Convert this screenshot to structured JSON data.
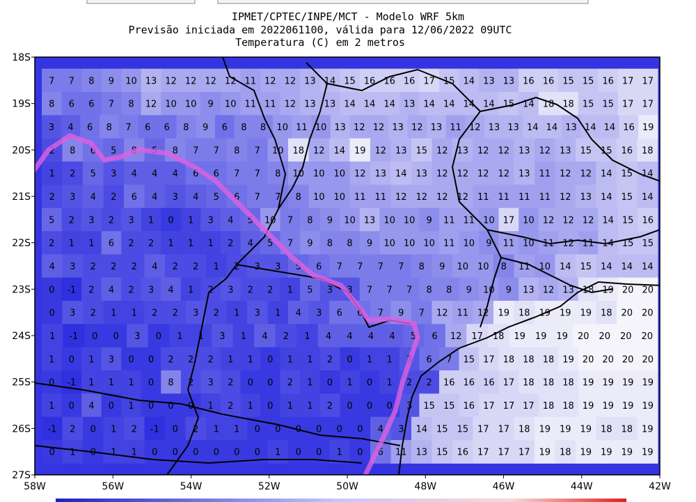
{
  "header": {
    "lines": [
      "IPMET/CPTEC/INPE/MCT - Modelo WRF 5km",
      "Previsão iniciada em 2022061100, válida para 12/06/2022 09UTC",
      "Temperatura (C) em 2 metros"
    ]
  },
  "axes": {
    "lat_labels": [
      "18S",
      "19S",
      "20S",
      "21S",
      "22S",
      "23S",
      "24S",
      "25S",
      "26S",
      "27S"
    ],
    "lon_labels": [
      "58W",
      "56W",
      "54W",
      "52W",
      "50W",
      "48W",
      "46W",
      "44W",
      "42W"
    ]
  },
  "grid": {
    "rows": [
      [
        7,
        7,
        8,
        9,
        10,
        13,
        12,
        12,
        12,
        12,
        11,
        12,
        12,
        13,
        14,
        15,
        16,
        16,
        16,
        17,
        15,
        14,
        13,
        13,
        16,
        16,
        15,
        15,
        16,
        17,
        17
      ],
      [
        8,
        6,
        6,
        7,
        8,
        12,
        10,
        10,
        9,
        10,
        11,
        11,
        12,
        13,
        13,
        14,
        14,
        14,
        13,
        14,
        14,
        14,
        14,
        15,
        14,
        18,
        18,
        15,
        15,
        17,
        17
      ],
      [
        3,
        4,
        6,
        8,
        7,
        6,
        6,
        8,
        9,
        6,
        8,
        8,
        10,
        11,
        10,
        13,
        12,
        12,
        13,
        12,
        13,
        11,
        12,
        13,
        13,
        14,
        14,
        13,
        14,
        14,
        16,
        19
      ],
      [
        2,
        8,
        6,
        5,
        8,
        5,
        8,
        7,
        7,
        8,
        7,
        10,
        18,
        12,
        14,
        19,
        12,
        13,
        15,
        12,
        13,
        12,
        12,
        13,
        12,
        13,
        15,
        15,
        16,
        18
      ],
      [
        1,
        2,
        5,
        3,
        4,
        4,
        4,
        6,
        6,
        7,
        7,
        8,
        10,
        10,
        10,
        12,
        13,
        14,
        13,
        12,
        12,
        12,
        12,
        13,
        11,
        12,
        12,
        14,
        15,
        14
      ],
      [
        2,
        3,
        4,
        2,
        6,
        4,
        3,
        4,
        5,
        6,
        7,
        7,
        8,
        10,
        10,
        11,
        11,
        12,
        12,
        12,
        12,
        11,
        11,
        11,
        11,
        12,
        13,
        14,
        15,
        14
      ],
      [
        5,
        2,
        3,
        2,
        3,
        1,
        0,
        1,
        3,
        4,
        5,
        10,
        7,
        8,
        9,
        10,
        13,
        10,
        10,
        9,
        11,
        11,
        10,
        17,
        10,
        12,
        12,
        12,
        14,
        15,
        16
      ],
      [
        2,
        1,
        1,
        6,
        2,
        2,
        1,
        1,
        1,
        2,
        4,
        5,
        7,
        9,
        8,
        8,
        9,
        10,
        10,
        10,
        11,
        10,
        9,
        11,
        10,
        11,
        12,
        11,
        14,
        15,
        15
      ],
      [
        4,
        3,
        2,
        2,
        2,
        4,
        2,
        2,
        1,
        2,
        3,
        3,
        5,
        6,
        7,
        7,
        7,
        7,
        8,
        9,
        10,
        10,
        8,
        11,
        10,
        14,
        15,
        14,
        14,
        14
      ],
      [
        0,
        -1,
        2,
        4,
        2,
        3,
        4,
        1,
        2,
        3,
        2,
        2,
        1,
        5,
        3,
        3,
        7,
        7,
        7,
        8,
        8,
        9,
        10,
        9,
        13,
        12,
        13,
        18,
        19,
        20,
        20
      ],
      [
        0,
        3,
        2,
        1,
        1,
        2,
        2,
        3,
        2,
        1,
        3,
        1,
        4,
        3,
        6,
        6,
        7,
        9,
        7,
        12,
        11,
        12,
        19,
        18,
        19,
        19,
        19,
        18,
        20,
        20
      ],
      [
        1,
        -1,
        0,
        0,
        3,
        0,
        1,
        1,
        3,
        1,
        4,
        2,
        1,
        4,
        4,
        4,
        4,
        5,
        6,
        12,
        17,
        18,
        19,
        19,
        19,
        20,
        20,
        20,
        20
      ],
      [
        1,
        0,
        1,
        3,
        0,
        0,
        2,
        2,
        2,
        1,
        1,
        0,
        1,
        1,
        2,
        0,
        1,
        1,
        3,
        6,
        7,
        15,
        17,
        18,
        18,
        18,
        19,
        20,
        20,
        20,
        20
      ],
      [
        0,
        -1,
        1,
        1,
        1,
        0,
        8,
        2,
        3,
        2,
        0,
        0,
        2,
        1,
        0,
        1,
        0,
        1,
        2,
        2,
        16,
        16,
        16,
        17,
        18,
        18,
        18,
        19,
        19,
        19,
        19
      ],
      [
        1,
        0,
        4,
        0,
        1,
        0,
        0,
        0,
        1,
        2,
        1,
        0,
        1,
        1,
        2,
        0,
        0,
        0,
        3,
        15,
        15,
        16,
        17,
        17,
        17,
        18,
        18,
        19,
        19,
        19,
        19
      ],
      [
        -1,
        2,
        0,
        1,
        2,
        -1,
        0,
        2,
        1,
        1,
        0,
        0,
        0,
        0,
        0,
        0,
        4,
        3,
        14,
        15,
        15,
        17,
        17,
        18,
        19,
        19,
        19,
        18,
        18,
        19
      ],
      [
        0,
        1,
        0,
        1,
        1,
        0,
        0,
        0,
        0,
        0,
        0,
        1,
        0,
        0,
        1,
        0,
        6,
        11,
        13,
        15,
        16,
        17,
        17,
        17,
        19,
        18,
        19,
        19,
        19,
        19
      ]
    ]
  }
}
